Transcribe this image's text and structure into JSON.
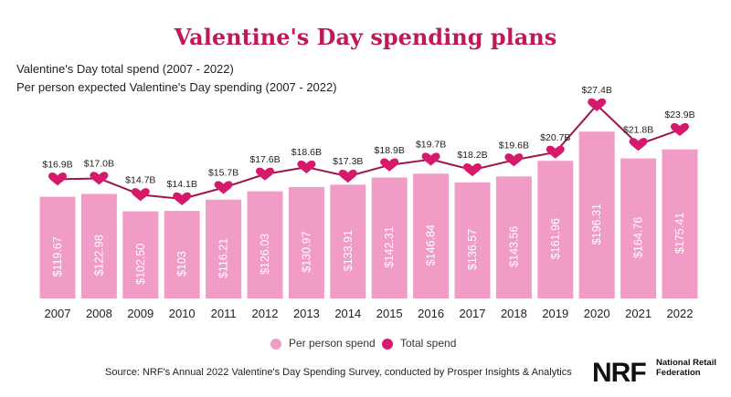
{
  "title": "Valentine's Day spending plans",
  "subtitle1": "Valentine's Day total spend (2007 - 2022)",
  "subtitle2": "Per person expected Valentine's Day spending (2007 - 2022)",
  "legend": {
    "per_person": "Per person spend",
    "total": "Total spend"
  },
  "source": "Source: NRF's Annual 2022 Valentine's Day Spending Survey, conducted by Prosper Insights & Analytics",
  "logo": {
    "mark": "NRF",
    "org_name": "National Retail Federation"
  },
  "colors": {
    "bar": "#f09cc6",
    "line": "#a0154d",
    "marker": "#d6196b",
    "title": "#c2185b"
  },
  "chart_data": {
    "type": "bar",
    "categories": [
      "2007",
      "2008",
      "2009",
      "2010",
      "2011",
      "2012",
      "2013",
      "2014",
      "2015",
      "2016",
      "2017",
      "2018",
      "2019",
      "2020",
      "2021",
      "2022"
    ],
    "series": [
      {
        "name": "Per person spend",
        "type": "bar",
        "values": [
          119.67,
          122.98,
          102.5,
          103,
          116.21,
          126.03,
          130.97,
          133.91,
          142.31,
          146.84,
          136.57,
          143.56,
          161.96,
          196.31,
          164.76,
          175.41
        ],
        "labels": [
          "$119.67",
          "$122.98",
          "$102.50",
          "$103",
          "$116.21",
          "$126.03",
          "$130.97",
          "$133.91",
          "$142.31",
          "$146.84",
          "$136.57",
          "$143.56",
          "$161.96",
          "$196.31",
          "$164.76",
          "$175.41"
        ]
      },
      {
        "name": "Total spend",
        "type": "line",
        "values": [
          16.9,
          17.0,
          14.7,
          14.1,
          15.7,
          17.6,
          18.6,
          17.3,
          18.9,
          19.7,
          18.2,
          19.6,
          20.7,
          27.4,
          21.8,
          23.9
        ],
        "labels": [
          "$16.9B",
          "$17.0B",
          "$14.7B",
          "$14.1B",
          "$15.7B",
          "$17.6B",
          "$18.6B",
          "$17.3B",
          "$18.9B",
          "$19.7B",
          "$18.2B",
          "$19.6B",
          "$20.7B",
          "$27.4B",
          "$21.8B",
          "$23.9B"
        ]
      }
    ],
    "legend_position": "bottom-center",
    "grid": false
  }
}
